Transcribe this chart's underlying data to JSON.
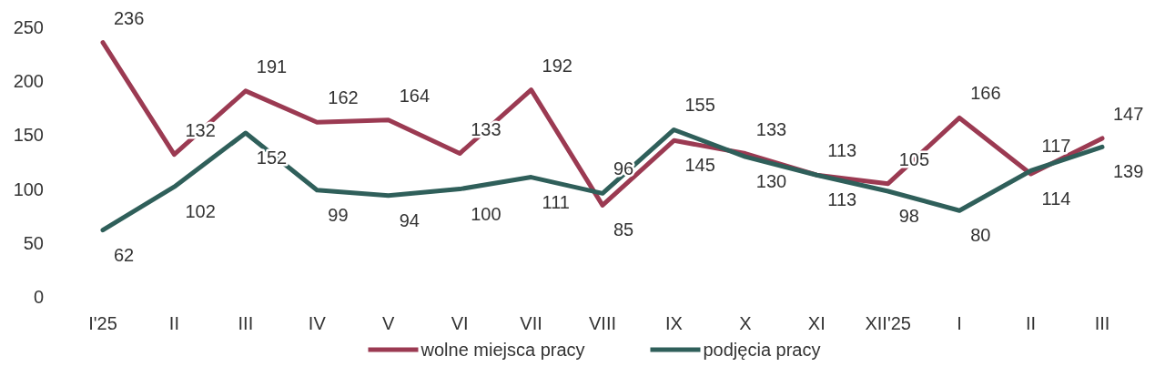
{
  "chart_data": {
    "type": "line",
    "categories": [
      "I'25",
      "II",
      "III",
      "IV",
      "V",
      "VI",
      "VII",
      "VIII",
      "IX",
      "X",
      "XI",
      "XII'25",
      "I",
      "II",
      "III"
    ],
    "series": [
      {
        "name": "wolne miejsca pracy",
        "color": "#9b3a52",
        "values": [
          236,
          132,
          191,
          162,
          164,
          133,
          192,
          85,
          145,
          133,
          113,
          105,
          166,
          114,
          147
        ]
      },
      {
        "name": "podjęcia pracy",
        "color": "#2f5f5a",
        "values": [
          62,
          102,
          152,
          99,
          94,
          100,
          111,
          96,
          155,
          130,
          113,
          98,
          80,
          117,
          139
        ]
      }
    ],
    "ylim": [
      0,
      250
    ],
    "yticks": [
      0,
      50,
      100,
      150,
      200,
      250
    ],
    "grid": false,
    "legend": "bottom",
    "data_labels": true,
    "marker": "none",
    "line_style": "solid"
  }
}
